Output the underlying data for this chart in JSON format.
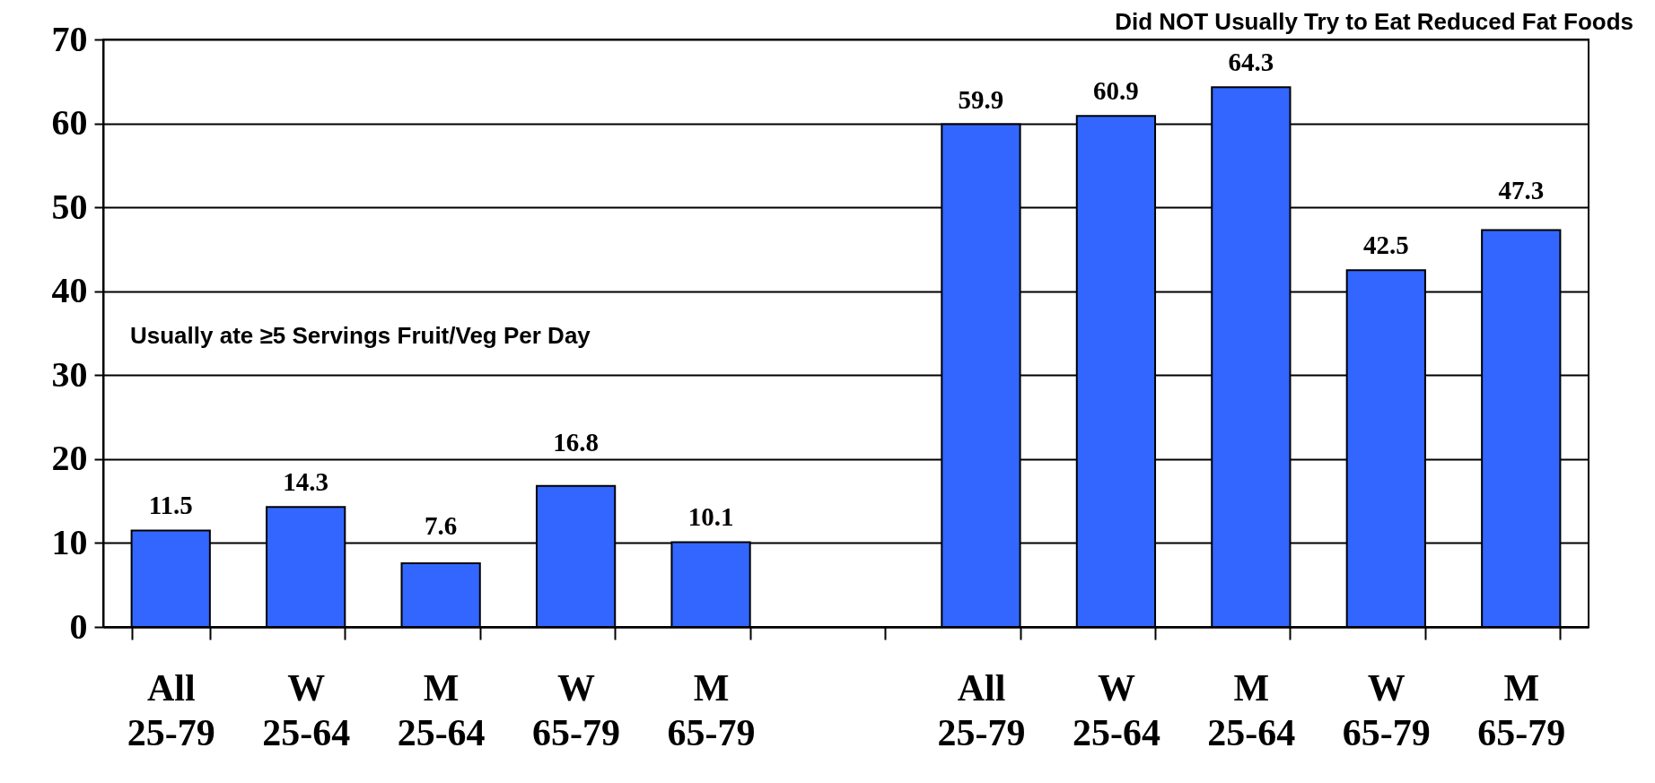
{
  "chart_data": {
    "type": "bar",
    "categories": [
      "All\n25-79",
      "W\n25-64",
      "M\n25-64",
      "W\n65-79",
      "M\n65-79",
      null,
      "All\n25-79",
      "W\n25-64",
      "M\n25-64",
      "W\n65-79",
      "M\n65-79"
    ],
    "values": [
      11.5,
      14.3,
      7.6,
      16.8,
      10.1,
      null,
      59.9,
      60.9,
      64.3,
      42.5,
      47.3
    ],
    "color": "#3366ff",
    "ylim": [
      0,
      70
    ],
    "yticks": [
      0,
      10,
      20,
      30,
      40,
      50,
      60,
      70
    ],
    "grid": "y",
    "data_labels": true,
    "annotations": [
      "Did NOT Usually Try to Eat Reduced Fat Foods",
      "Usually ate ≥5 Servings Fruit/Veg Per Day"
    ]
  }
}
